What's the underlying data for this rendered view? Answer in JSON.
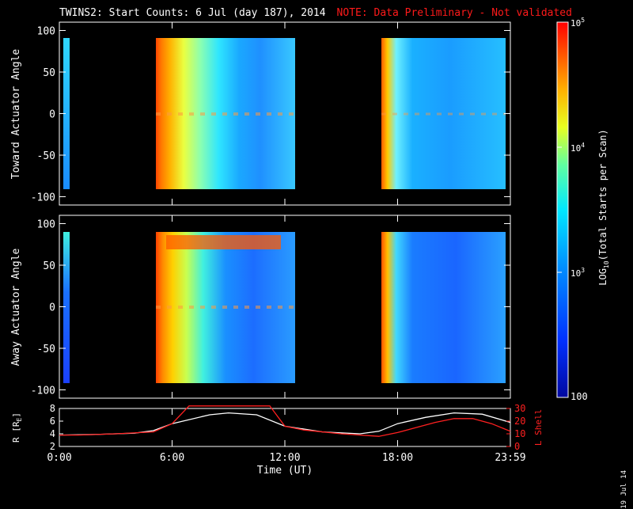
{
  "header": {
    "title": "TWINS2: Start Counts:  6 Jul (day 187), 2014",
    "note": "NOTE: Data Preliminary - Not validated"
  },
  "stamp": "19 Jul 14",
  "colors": {
    "background": "#000000",
    "note": "#ff1a1a",
    "rplot": "#ffffff",
    "lshell": "#ff2020"
  },
  "chart_data": [
    {
      "type": "heatmap",
      "panel": "top",
      "ylabel": "Toward Actuator Angle",
      "ylim": [
        -110,
        110
      ],
      "yticks": [
        "100",
        "50",
        "0",
        "-50",
        "-100"
      ],
      "xlim_hours": [
        0,
        24
      ],
      "data_intervals_hours": [
        [
          5.0,
          12.25
        ],
        [
          17.0,
          24.0
        ]
      ],
      "scale": "log",
      "zlim": [
        100,
        100000
      ],
      "notes": "Counts high (red/orange) near 5-7 UT, decreasing to cyan/blue later; second interval mostly blue-cyan."
    },
    {
      "type": "heatmap",
      "panel": "middle",
      "ylabel": "Away Actuator Angle",
      "ylim": [
        -110,
        110
      ],
      "yticks": [
        "100",
        "50",
        "0",
        "-50",
        "-100"
      ],
      "xlim_hours": [
        0,
        24
      ],
      "data_intervals_hours": [
        [
          5.0,
          12.25
        ],
        [
          17.0,
          24.0
        ]
      ],
      "scale": "log",
      "zlim": [
        100,
        100000
      ],
      "notes": "Similar pattern; band of enhanced counts near +85 deg from 6 to 11 UT."
    },
    {
      "type": "line",
      "panel": "bottom",
      "xlabel": "Time (UT)",
      "xticks": [
        "0:00",
        "6:00",
        "12:00",
        "18:00",
        "23:59"
      ],
      "ylabel_left": "R [R",
      "ylabel_left_sub": "E",
      "ylim_left": [
        2,
        8
      ],
      "yticks_left": [
        "8",
        "6",
        "4",
        "2"
      ],
      "ylabel_right": "L Shell",
      "ylim_right": [
        0,
        30
      ],
      "yticks_right": [
        "30",
        "20",
        "10",
        "0"
      ],
      "series": [
        {
          "color": "#ffffff",
          "axis": "left",
          "x": [
            0,
            2,
            4,
            5,
            6,
            8,
            9,
            10.5,
            12,
            14,
            16,
            17,
            18,
            19.5,
            21,
            22.5,
            24
          ],
          "y": [
            3.8,
            3.9,
            4.1,
            4.5,
            5.6,
            7.0,
            7.3,
            7.0,
            5.2,
            4.3,
            4.0,
            4.4,
            5.6,
            6.6,
            7.3,
            7.1,
            5.8
          ]
        },
        {
          "color": "#ff2020",
          "axis": "right",
          "x": [
            0,
            1,
            3,
            5,
            6,
            6.9,
            11.2,
            12,
            13,
            15,
            17,
            18,
            19,
            20,
            21,
            22,
            23,
            24
          ],
          "y": [
            9,
            9,
            10,
            11.5,
            18,
            32,
            32,
            16,
            13,
            10,
            8,
            11,
            15,
            19,
            22,
            22,
            18,
            12
          ]
        }
      ]
    },
    {
      "type": "colorbar",
      "label": "LOG",
      "label_sub": "10",
      "label_rest": "(Total Starts per Scan)",
      "scale": "log",
      "zlim": [
        100,
        100000
      ],
      "tick_base": "10",
      "tick_exps": [
        "5",
        "4",
        "3"
      ],
      "tick_bottom": "100"
    }
  ]
}
